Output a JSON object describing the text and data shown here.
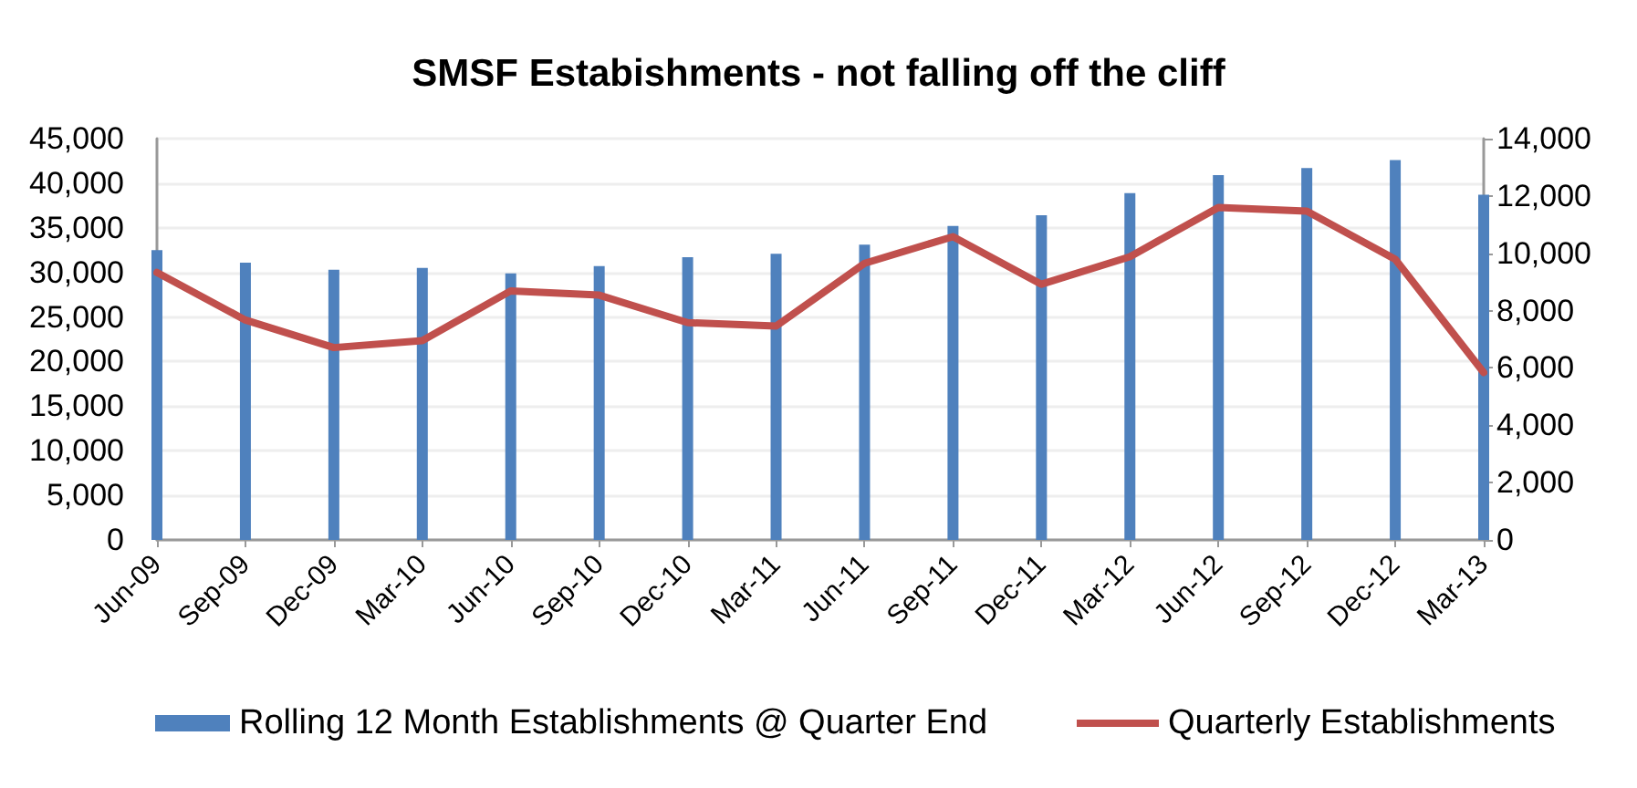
{
  "chart_data": {
    "type": "bar",
    "title": "SMSF Estabishments - not falling off the cliff",
    "categories": [
      "Jun-09",
      "Sep-09",
      "Dec-09",
      "Mar-10",
      "Jun-10",
      "Sep-10",
      "Dec-10",
      "Mar-11",
      "Jun-11",
      "Sep-11",
      "Dec-11",
      "Mar-12",
      "Jun-12",
      "Sep-12",
      "Dec-12",
      "Mar-13"
    ],
    "series": [
      {
        "name": "Rolling 12 Month Establishments @ Quarter End",
        "color": "#4f81bd",
        "values": [
          32500,
          31100,
          30300,
          30500,
          29900,
          30700,
          31700,
          32100,
          33100,
          35200,
          36400,
          38900,
          40900,
          41700,
          42600,
          38700
        ]
      },
      {
        "name": "Quarterly Establishments",
        "type": "line",
        "color": "#c0504d",
        "axis": "y2",
        "values": [
          9330,
          7670,
          6710,
          6950,
          8690,
          8540,
          7580,
          7460,
          9650,
          10580,
          8920,
          9880,
          11600,
          11470,
          9790,
          5840
        ]
      }
    ],
    "ylim": [
      0,
      45000
    ],
    "yticks": [
      {
        "value": 0,
        "label": "0"
      },
      {
        "value": 5000,
        "label": "5,000"
      },
      {
        "value": 10000,
        "label": "10,000"
      },
      {
        "value": 15000,
        "label": "15,000"
      },
      {
        "value": 20000,
        "label": "20,000"
      },
      {
        "value": 25000,
        "label": "25,000"
      },
      {
        "value": 30000,
        "label": "30,000"
      },
      {
        "value": 35000,
        "label": "35,000"
      },
      {
        "value": 40000,
        "label": "40,000"
      },
      {
        "value": 45000,
        "label": "45,000"
      }
    ],
    "y2lim": [
      0,
      14000
    ],
    "y2ticks": [
      {
        "value": 0,
        "label": "0"
      },
      {
        "value": 2000,
        "label": "2,000"
      },
      {
        "value": 4000,
        "label": "4,000"
      },
      {
        "value": 6000,
        "label": "6,000"
      },
      {
        "value": 8000,
        "label": "8,000"
      },
      {
        "value": 10000,
        "label": "10,000"
      },
      {
        "value": 12000,
        "label": "12,000"
      },
      {
        "value": 14000,
        "label": "14,000"
      }
    ],
    "grid": "y",
    "legend": "bottom",
    "marker": "none",
    "line_style": "solid"
  }
}
